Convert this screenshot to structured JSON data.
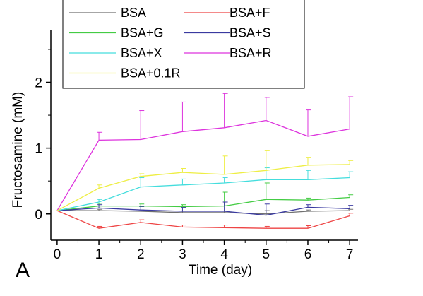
{
  "panel_label": "A",
  "chart_data": {
    "type": "line",
    "title": "",
    "xlabel": "Time (day)",
    "ylabel": "Fructosamine (mM)",
    "xlim": [
      -0.15,
      7.2
    ],
    "ylim": [
      -0.4,
      2.8
    ],
    "xticks": [
      0,
      1,
      2,
      3,
      4,
      5,
      6,
      7
    ],
    "yticks": [
      0,
      1,
      2
    ],
    "grid": false,
    "legend_position": "top-left",
    "x": [
      0,
      1,
      2,
      3,
      4,
      5,
      6,
      7
    ],
    "series": [
      {
        "name": "BSA",
        "color": "#707070",
        "values": [
          0.05,
          0.05,
          0.04,
          0.02,
          0.02,
          0.0,
          0.04,
          0.05
        ],
        "errors": [
          0,
          0.02,
          0.02,
          0.02,
          0.02,
          0.05,
          0.02,
          0.02
        ]
      },
      {
        "name": "BSA+F",
        "color": "#ee4444",
        "values": [
          0.05,
          -0.22,
          -0.13,
          -0.2,
          -0.21,
          -0.22,
          -0.22,
          -0.03
        ],
        "errors": [
          0,
          0.03,
          0.04,
          0.03,
          0.04,
          0.03,
          0.04,
          0.04
        ]
      },
      {
        "name": "BSA+G",
        "color": "#44cc44",
        "values": [
          0.05,
          0.12,
          0.12,
          0.11,
          0.12,
          0.22,
          0.21,
          0.25
        ],
        "errors": [
          0,
          0.04,
          0.03,
          0.03,
          0.21,
          0.25,
          0.03,
          0.04
        ]
      },
      {
        "name": "BSA+S",
        "color": "#3a3aa0",
        "values": [
          0.05,
          0.09,
          0.06,
          0.04,
          0.04,
          -0.02,
          0.1,
          0.08
        ],
        "errors": [
          0,
          0.05,
          0.05,
          0.06,
          0.14,
          0.17,
          0.04,
          0.05
        ]
      },
      {
        "name": "BSA+X",
        "color": "#44dddd",
        "values": [
          0.05,
          0.18,
          0.41,
          0.44,
          0.47,
          0.52,
          0.52,
          0.55
        ],
        "errors": [
          0,
          0.04,
          0.14,
          0.09,
          0.08,
          0.18,
          0.14,
          0.09
        ]
      },
      {
        "name": "BSA+R",
        "color": "#dd33dd",
        "values": [
          0.05,
          1.12,
          1.13,
          1.25,
          1.31,
          1.42,
          1.18,
          1.29
        ],
        "errors": [
          0,
          0.12,
          0.44,
          0.45,
          0.52,
          0.35,
          0.4,
          0.49
        ]
      },
      {
        "name": "BSA+0.1R",
        "color": "#eeee44",
        "values": [
          0.05,
          0.39,
          0.57,
          0.63,
          0.6,
          0.66,
          0.74,
          0.75
        ],
        "errors": [
          0,
          0.05,
          0.04,
          0.06,
          0.28,
          0.3,
          0.12,
          0.06
        ]
      }
    ]
  }
}
